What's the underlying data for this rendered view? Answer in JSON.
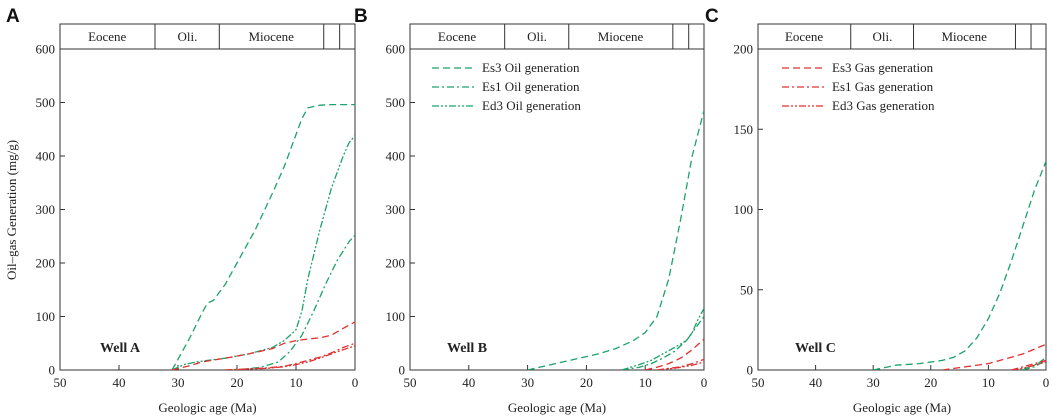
{
  "figure": {
    "ylabel": "Oil–gas Generation (mg/g)",
    "epochs": [
      "Eocene",
      "Oli.",
      "Miocene",
      "",
      ""
    ],
    "epoch_boundaries_ma": [
      50,
      33.9,
      23,
      5.3,
      2.6,
      0
    ]
  },
  "chart_data": [
    {
      "panel": "A",
      "type": "line",
      "well_label": "Well A",
      "xlabel": "Geologic age (Ma)",
      "ylabel": "Oil–gas Generation (mg/g)",
      "xlim": [
        50,
        0
      ],
      "ylim": [
        0,
        600
      ],
      "xticks": [
        50,
        40,
        30,
        20,
        10,
        0
      ],
      "yticks": [
        0,
        100,
        200,
        300,
        400,
        500,
        600
      ],
      "series": [
        {
          "name": "Es3 Oil generation",
          "color": "#1aa36a",
          "dash": "7,4",
          "x": [
            31,
            28,
            26,
            25,
            24,
            22,
            20,
            17,
            14,
            12,
            10,
            9,
            8,
            6,
            4,
            2,
            0
          ],
          "y": [
            0,
            60,
            105,
            125,
            130,
            160,
            200,
            260,
            330,
            380,
            440,
            470,
            490,
            495,
            496,
            496,
            496
          ]
        },
        {
          "name": "Es1 Oil generation",
          "color": "#1aa36a",
          "dash": "7,3,2,3",
          "x": [
            20,
            16,
            13,
            11,
            9,
            7,
            5,
            3,
            1,
            0
          ],
          "y": [
            0,
            5,
            15,
            35,
            65,
            110,
            160,
            205,
            240,
            252
          ]
        },
        {
          "name": "Ed3 Oil generation",
          "color": "#1aa36a",
          "dash": "7,2,2,2,2,2",
          "x": [
            31,
            29,
            27,
            25,
            22,
            18,
            14,
            12,
            10,
            9,
            8,
            6,
            4,
            2,
            1,
            0
          ],
          "y": [
            0,
            10,
            15,
            18,
            22,
            30,
            42,
            55,
            75,
            110,
            170,
            260,
            340,
            400,
            425,
            438
          ]
        },
        {
          "name": "Es3 Gas generation",
          "color": "#e03030",
          "dash": "7,4",
          "x": [
            31,
            28,
            26,
            22,
            18,
            14,
            12,
            10,
            8,
            6,
            4,
            2,
            0
          ],
          "y": [
            0,
            8,
            15,
            22,
            30,
            40,
            50,
            55,
            58,
            60,
            65,
            78,
            90
          ]
        },
        {
          "name": "Es1 Gas generation",
          "color": "#e03030",
          "dash": "7,3,2,3",
          "x": [
            22,
            18,
            15,
            12,
            10,
            8,
            6,
            4,
            2,
            0
          ],
          "y": [
            0,
            2,
            4,
            7,
            12,
            18,
            24,
            32,
            42,
            50
          ]
        },
        {
          "name": "Ed3 Gas generation",
          "color": "#e03030",
          "dash": "7,2,2,2,2,2",
          "x": [
            22,
            18,
            15,
            12,
            10,
            8,
            6,
            4,
            2,
            0
          ],
          "y": [
            0,
            2,
            3,
            6,
            10,
            15,
            22,
            30,
            38,
            45
          ]
        }
      ]
    },
    {
      "panel": "B",
      "type": "line",
      "well_label": "Well B",
      "xlabel": "Geologic age (Ma)",
      "ylabel": "",
      "xlim": [
        50,
        0
      ],
      "ylim": [
        0,
        600
      ],
      "xticks": [
        50,
        40,
        30,
        20,
        10,
        0
      ],
      "yticks": [
        0,
        100,
        200,
        300,
        400,
        500,
        600
      ],
      "legend": [
        "Es3 Oil generation",
        "Es1 Oil generation",
        "Ed3 Oil generation"
      ],
      "series": [
        {
          "name": "Es3 Oil generation",
          "color": "#1aa36a",
          "dash": "7,4",
          "x": [
            30,
            26,
            22,
            18,
            15,
            12,
            10,
            8,
            6,
            4,
            2,
            0
          ],
          "y": [
            0,
            10,
            20,
            30,
            40,
            55,
            70,
            100,
            170,
            280,
            400,
            485
          ]
        },
        {
          "name": "Es1 Oil generation",
          "color": "#1aa36a",
          "dash": "7,3,2,3",
          "x": [
            14,
            11,
            9,
            7,
            5,
            3,
            1,
            0
          ],
          "y": [
            0,
            5,
            12,
            22,
            35,
            55,
            85,
            100
          ]
        },
        {
          "name": "Ed3 Oil generation",
          "color": "#1aa36a",
          "dash": "7,2,2,2,2,2",
          "x": [
            14,
            11,
            9,
            7,
            5,
            3,
            2,
            1,
            0
          ],
          "y": [
            0,
            10,
            18,
            30,
            42,
            55,
            70,
            95,
            115
          ]
        },
        {
          "name": "Es3 Gas generation",
          "color": "#e03030",
          "dash": "7,4",
          "x": [
            10,
            8,
            6,
            4,
            2,
            0
          ],
          "y": [
            0,
            5,
            12,
            22,
            38,
            58
          ]
        },
        {
          "name": "Es1 Gas generation",
          "color": "#e03030",
          "dash": "7,3,2,3",
          "x": [
            8,
            6,
            4,
            2,
            0
          ],
          "y": [
            0,
            3,
            6,
            12,
            20
          ]
        },
        {
          "name": "Ed3 Gas generation",
          "color": "#e03030",
          "dash": "7,2,2,2,2,2",
          "x": [
            8,
            6,
            4,
            2,
            0
          ],
          "y": [
            0,
            2,
            5,
            9,
            15
          ]
        }
      ]
    },
    {
      "panel": "C",
      "type": "line",
      "well_label": "Well C",
      "xlabel": "Geologic age (Ma)",
      "ylabel": "",
      "xlim": [
        50,
        0
      ],
      "ylim": [
        0,
        200
      ],
      "xticks": [
        50,
        40,
        30,
        20,
        10,
        0
      ],
      "yticks": [
        0,
        50,
        100,
        150,
        200
      ],
      "legend": [
        "Es3 Gas generation",
        "Es1 Gas generation",
        "Ed3 Gas generation"
      ],
      "series": [
        {
          "name": "Es3 Oil generation",
          "color": "#1aa36a",
          "dash": "7,4",
          "x": [
            30,
            26,
            22,
            18,
            16,
            14,
            12,
            10,
            8,
            6,
            4,
            2,
            0
          ],
          "y": [
            0,
            3,
            4,
            6,
            8,
            12,
            20,
            32,
            48,
            68,
            90,
            112,
            130
          ]
        },
        {
          "name": "Es1 Oil generation",
          "color": "#1aa36a",
          "dash": "7,3,2,3",
          "x": [
            4,
            3,
            2,
            1,
            0
          ],
          "y": [
            0,
            1,
            2,
            4,
            6
          ]
        },
        {
          "name": "Ed3 Oil generation",
          "color": "#1aa36a",
          "dash": "7,2,2,2,2,2",
          "x": [
            4,
            3,
            2,
            1,
            0
          ],
          "y": [
            0,
            2,
            3,
            5,
            8
          ]
        },
        {
          "name": "Es3 Gas generation",
          "color": "#e03030",
          "dash": "7,4",
          "x": [
            18,
            14,
            10,
            8,
            6,
            4,
            2,
            0
          ],
          "y": [
            0,
            2,
            4,
            6,
            8,
            10,
            13,
            16
          ]
        },
        {
          "name": "Es1 Gas generation",
          "color": "#e03030",
          "dash": "7,3,2,3",
          "x": [
            6,
            4,
            2,
            0
          ],
          "y": [
            0,
            2,
            4,
            6
          ]
        },
        {
          "name": "Ed3 Gas generation",
          "color": "#e03030",
          "dash": "7,2,2,2,2,2",
          "x": [
            6,
            4,
            2,
            0
          ],
          "y": [
            0,
            1,
            3,
            5
          ]
        }
      ]
    }
  ]
}
